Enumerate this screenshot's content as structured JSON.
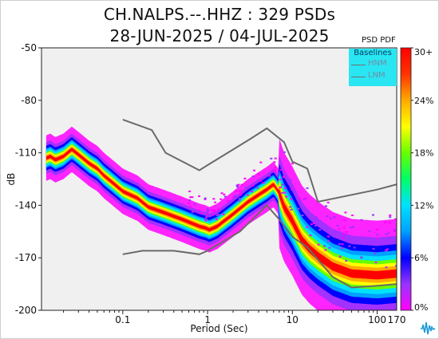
{
  "chart_data": {
    "type": "heatmap",
    "title_line1": "CH.NALPS.--.HHZ : 329 PSDs",
    "title_line2": "28-JUN-2025 / 04-JUL-2025",
    "xlabel": "Period (Sec)",
    "ylabel": "dB",
    "x_scale": "log",
    "xlim": [
      0.011,
      170
    ],
    "ylim": [
      -200,
      -50
    ],
    "x_ticks": [
      {
        "value": 0.1,
        "label": "0.1"
      },
      {
        "value": 1,
        "label": "1"
      },
      {
        "value": 10,
        "label": "10"
      },
      {
        "value": 100,
        "label": "100"
      },
      {
        "value": 170,
        "label": "170"
      }
    ],
    "y_ticks": [
      {
        "value": -50,
        "label": "-50"
      },
      {
        "value": -80,
        "label": "-80"
      },
      {
        "value": -110,
        "label": "-110"
      },
      {
        "value": -140,
        "label": "-140"
      },
      {
        "value": -170,
        "label": "-170"
      },
      {
        "value": -200,
        "label": "-200"
      }
    ],
    "grid": false,
    "background_color": "#f0f0f0",
    "colorbar": {
      "title": "PSD PDF",
      "labels": [
        "30+",
        "24%",
        "18%",
        "12%",
        "6%",
        "0%"
      ],
      "label_values": [
        30,
        24,
        18,
        12,
        6,
        0
      ],
      "colors": [
        "#ff00ff",
        "#9933ff",
        "#0000ff",
        "#00a0ff",
        "#00e0ff",
        "#00ff66",
        "#66ff00",
        "#ffff00",
        "#ffaa00",
        "#ff3300",
        "#ff0000"
      ]
    },
    "legend": {
      "title": "Baselines",
      "placement": "top-right",
      "entries": [
        "HNM",
        "LNM"
      ],
      "background": "#29e6f2"
    },
    "baselines": {
      "color": "#6a6a6a",
      "HNM": [
        [
          0.1,
          -91
        ],
        [
          0.22,
          -97
        ],
        [
          0.32,
          -110
        ],
        [
          0.8,
          -120
        ],
        [
          1.0,
          -117
        ],
        [
          3.2,
          -102
        ],
        [
          5.0,
          -96
        ],
        [
          8.0,
          -104
        ],
        [
          10,
          -115
        ],
        [
          15,
          -119
        ],
        [
          20,
          -138
        ],
        [
          100,
          -131
        ],
        [
          170,
          -128
        ]
      ],
      "LNM": [
        [
          0.1,
          -168
        ],
        [
          0.17,
          -166
        ],
        [
          0.4,
          -166
        ],
        [
          0.8,
          -168
        ],
        [
          1.0,
          -166
        ],
        [
          2.4,
          -155
        ],
        [
          5.0,
          -140
        ],
        [
          7.0,
          -148
        ],
        [
          10,
          -158
        ],
        [
          15,
          -164
        ],
        [
          30,
          -181
        ],
        [
          50,
          -187
        ],
        [
          100,
          -186
        ],
        [
          170,
          -185
        ]
      ]
    },
    "psd_mode": [
      [
        0.0125,
        -113
      ],
      [
        0.014,
        -112
      ],
      [
        0.016,
        -114
      ],
      [
        0.02,
        -112
      ],
      [
        0.025,
        -108
      ],
      [
        0.03,
        -111
      ],
      [
        0.04,
        -116
      ],
      [
        0.05,
        -119
      ],
      [
        0.06,
        -123
      ],
      [
        0.08,
        -128
      ],
      [
        0.1,
        -132
      ],
      [
        0.15,
        -136
      ],
      [
        0.2,
        -141
      ],
      [
        0.3,
        -144
      ],
      [
        0.5,
        -148
      ],
      [
        0.8,
        -152
      ],
      [
        0.95,
        -153
      ],
      [
        1.05,
        -154
      ],
      [
        1.3,
        -152
      ],
      [
        2.0,
        -145
      ],
      [
        3.0,
        -138
      ],
      [
        4.0,
        -134
      ],
      [
        5.0,
        -131
      ],
      [
        6.0,
        -128
      ],
      [
        7.0,
        -133
      ],
      [
        8.0,
        -141
      ],
      [
        10,
        -149
      ],
      [
        13,
        -160
      ],
      [
        16,
        -165
      ],
      [
        20,
        -169
      ],
      [
        30,
        -175
      ],
      [
        50,
        -179
      ],
      [
        100,
        -180
      ],
      [
        170,
        -179
      ]
    ]
  }
}
